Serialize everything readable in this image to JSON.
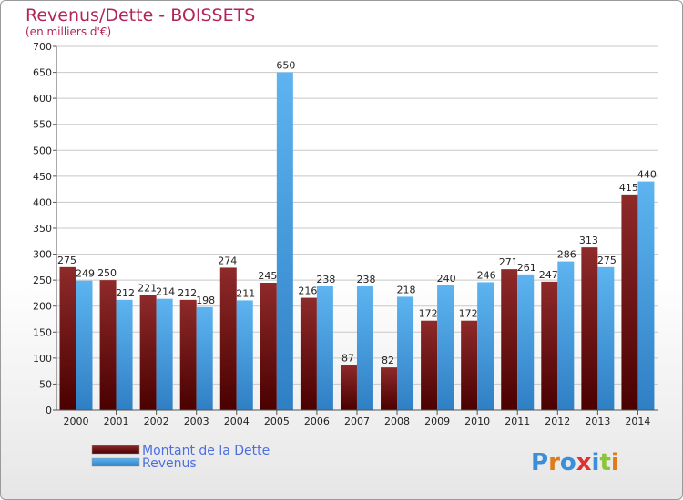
{
  "chart_data": {
    "type": "bar",
    "title": "Revenus/Dette - BOISSETS",
    "subtitle": "(en milliers d'€)",
    "categories": [
      "2000",
      "2001",
      "2002",
      "2003",
      "2004",
      "2005",
      "2006",
      "2007",
      "2008",
      "2009",
      "2010",
      "2011",
      "2012",
      "2013",
      "2014"
    ],
    "series": [
      {
        "name": "Montant de la Dette",
        "color": "#7a1010",
        "values": [
          275,
          250,
          221,
          212,
          274,
          245,
          216,
          87,
          82,
          172,
          172,
          271,
          247,
          313,
          415
        ]
      },
      {
        "name": "Revenus",
        "color": "#4aa3e6",
        "values": [
          249,
          212,
          214,
          198,
          211,
          650,
          238,
          238,
          218,
          240,
          246,
          261,
          286,
          275,
          440
        ]
      }
    ],
    "ylim": [
      0,
      700
    ],
    "yticks": [
      0,
      50,
      100,
      150,
      200,
      250,
      300,
      350,
      400,
      450,
      500,
      550,
      600,
      650,
      700
    ],
    "grid": true,
    "legend": "bottom-left"
  },
  "logo": {
    "text": "Proxiti"
  }
}
